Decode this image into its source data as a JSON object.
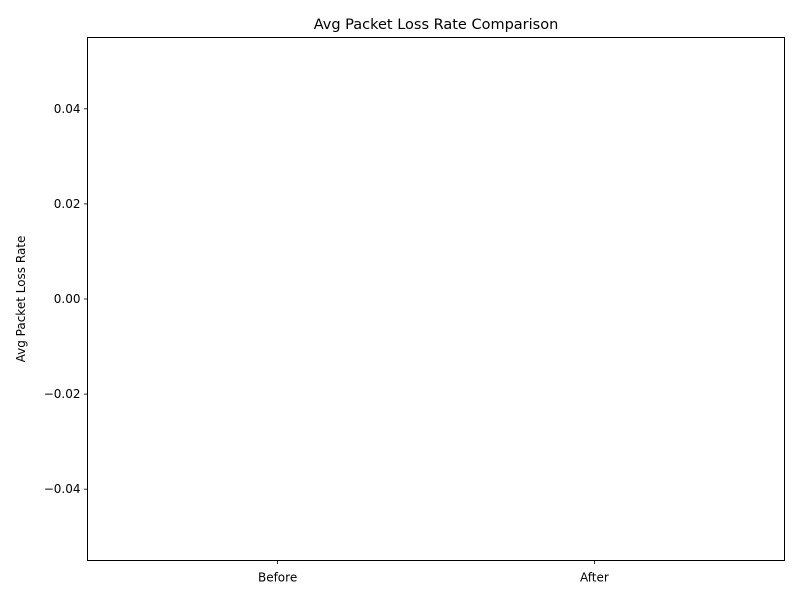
{
  "chart_data": {
    "type": "bar",
    "title": "Avg Packet Loss Rate Comparison",
    "xlabel": "",
    "ylabel": "Avg Packet Loss Rate",
    "categories": [
      "Before",
      "After"
    ],
    "values": [
      0,
      0
    ],
    "ylim": [
      -0.055,
      0.055
    ],
    "yticks": [
      -0.04,
      -0.02,
      0.0,
      0.02,
      0.04
    ],
    "ytick_labels": [
      "−0.04",
      "−0.02",
      "0.00",
      "0.02",
      "0.04"
    ],
    "grid": false,
    "bar_color": "#1f77b4"
  }
}
